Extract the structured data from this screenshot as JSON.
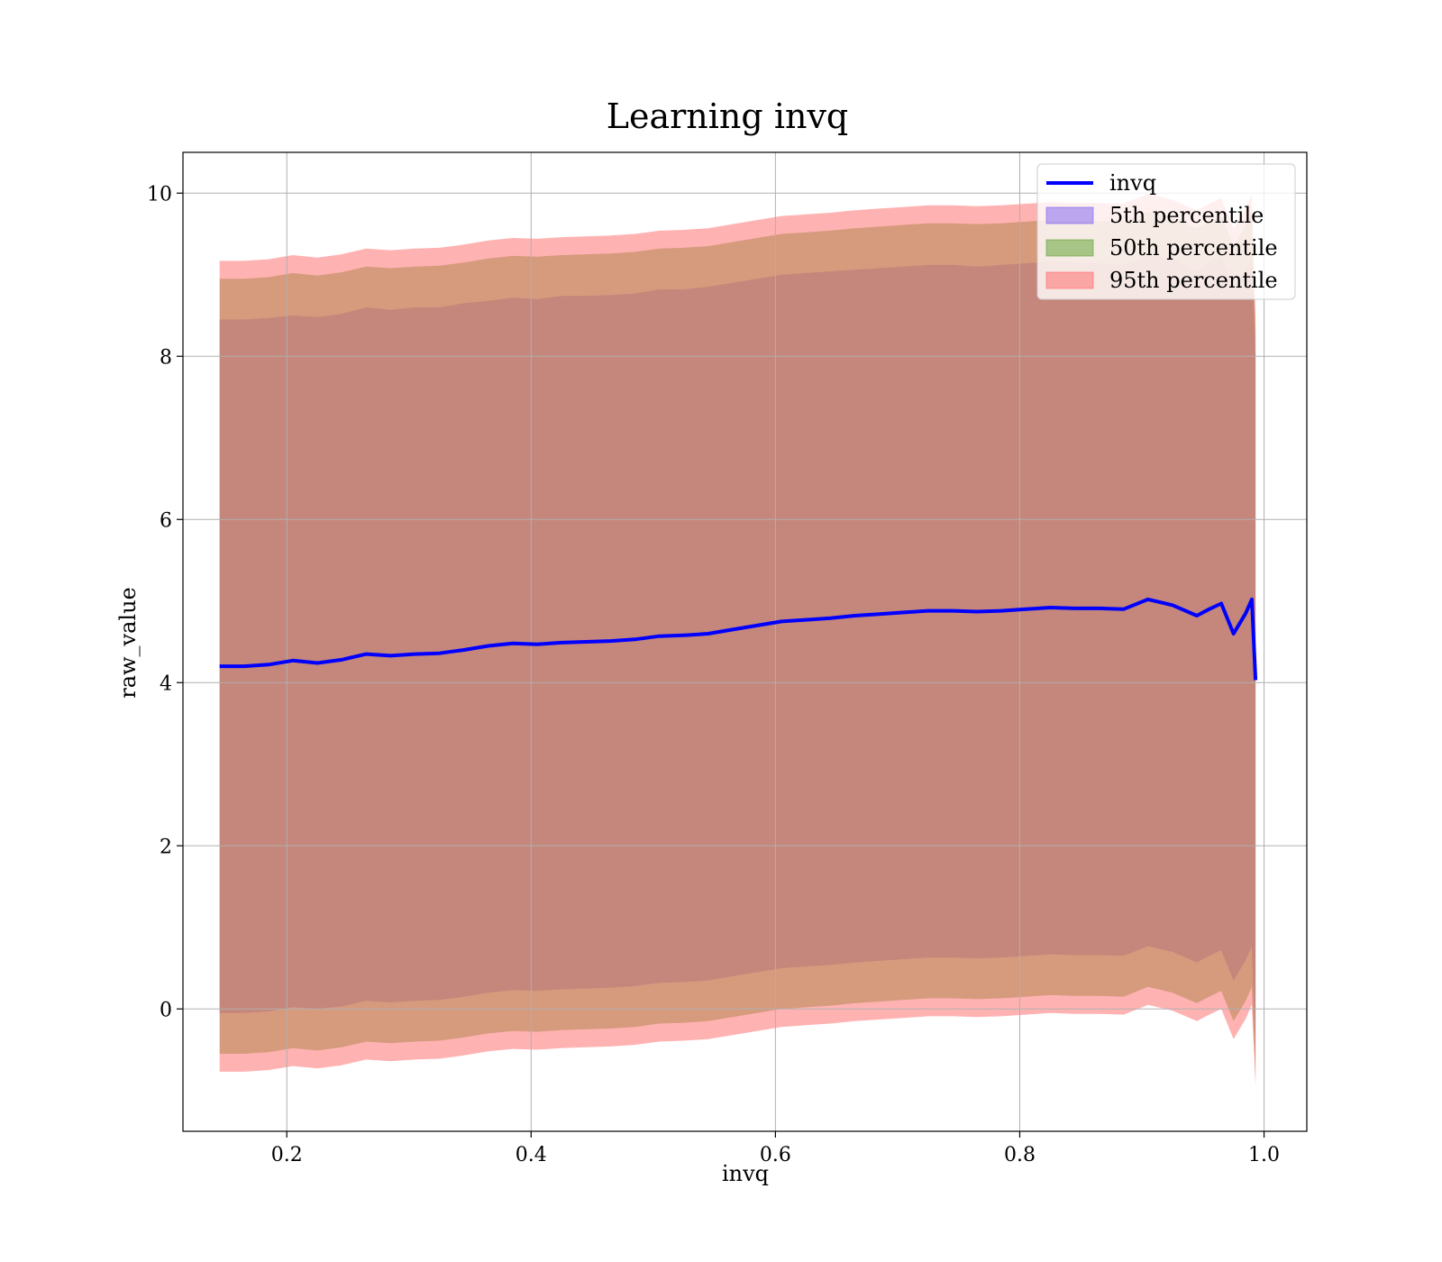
{
  "chart_data": {
    "type": "area",
    "title": "Learning invq",
    "xlabel": "invq",
    "ylabel": "raw_value",
    "xlim": [
      0.115,
      1.035
    ],
    "ylim": [
      -1.5,
      10.5
    ],
    "xticks": [
      0.2,
      0.4,
      0.6,
      0.8,
      1.0
    ],
    "xtick_labels": [
      "0.2",
      "0.4",
      "0.6",
      "0.8",
      "1.0"
    ],
    "yticks": [
      0,
      2,
      4,
      6,
      8,
      10
    ],
    "ytick_labels": [
      "0",
      "2",
      "4",
      "6",
      "8",
      "10"
    ],
    "grid": true,
    "legend_position": "top-right",
    "x": [
      0.145,
      0.165,
      0.185,
      0.205,
      0.225,
      0.245,
      0.265,
      0.285,
      0.305,
      0.325,
      0.345,
      0.365,
      0.385,
      0.405,
      0.425,
      0.445,
      0.465,
      0.485,
      0.505,
      0.525,
      0.545,
      0.565,
      0.585,
      0.605,
      0.625,
      0.645,
      0.665,
      0.685,
      0.705,
      0.725,
      0.745,
      0.765,
      0.785,
      0.805,
      0.825,
      0.845,
      0.865,
      0.885,
      0.905,
      0.925,
      0.945,
      0.955,
      0.965,
      0.975,
      0.985,
      0.99,
      0.993
    ],
    "series": [
      {
        "name": "invq",
        "kind": "line",
        "color": "#0000ff",
        "values": [
          4.2,
          4.2,
          4.22,
          4.27,
          4.24,
          4.28,
          4.35,
          4.33,
          4.35,
          4.36,
          4.4,
          4.45,
          4.48,
          4.47,
          4.49,
          4.5,
          4.51,
          4.53,
          4.57,
          4.58,
          4.6,
          4.65,
          4.7,
          4.75,
          4.77,
          4.79,
          4.82,
          4.84,
          4.86,
          4.88,
          4.88,
          4.87,
          4.88,
          4.9,
          4.92,
          4.91,
          4.91,
          4.9,
          5.02,
          4.95,
          4.82,
          4.9,
          4.97,
          4.6,
          4.85,
          5.02,
          4.03
        ]
      },
      {
        "name": "5th percentile",
        "kind": "band",
        "color": "#7b5cf0",
        "upper": [
          8.45,
          8.45,
          8.47,
          8.5,
          8.48,
          8.52,
          8.6,
          8.57,
          8.6,
          8.6,
          8.65,
          8.68,
          8.72,
          8.7,
          8.74,
          8.74,
          8.75,
          8.77,
          8.82,
          8.82,
          8.85,
          8.9,
          8.95,
          9.0,
          9.02,
          9.04,
          9.06,
          9.08,
          9.1,
          9.12,
          9.12,
          9.1,
          9.12,
          9.14,
          9.16,
          9.15,
          9.14,
          9.13,
          9.24,
          9.2,
          9.05,
          9.15,
          9.22,
          8.85,
          9.05,
          9.2,
          8.0
        ],
        "lower": [
          -0.05,
          -0.05,
          -0.03,
          0.02,
          0.0,
          0.03,
          0.1,
          0.08,
          0.1,
          0.11,
          0.15,
          0.2,
          0.23,
          0.22,
          0.24,
          0.25,
          0.26,
          0.28,
          0.32,
          0.33,
          0.35,
          0.4,
          0.45,
          0.5,
          0.52,
          0.54,
          0.57,
          0.59,
          0.61,
          0.63,
          0.63,
          0.62,
          0.63,
          0.65,
          0.67,
          0.66,
          0.66,
          0.65,
          0.77,
          0.7,
          0.57,
          0.65,
          0.72,
          0.35,
          0.6,
          0.77,
          -0.6
        ]
      },
      {
        "name": "50th percentile",
        "kind": "band",
        "color": "#5aa02c",
        "upper": [
          8.95,
          8.95,
          8.97,
          9.02,
          8.99,
          9.03,
          9.1,
          9.08,
          9.1,
          9.11,
          9.15,
          9.2,
          9.23,
          9.22,
          9.24,
          9.25,
          9.26,
          9.28,
          9.32,
          9.33,
          9.35,
          9.4,
          9.45,
          9.5,
          9.52,
          9.54,
          9.57,
          9.59,
          9.61,
          9.63,
          9.63,
          9.62,
          9.63,
          9.65,
          9.67,
          9.66,
          9.66,
          9.65,
          9.77,
          9.7,
          9.57,
          9.65,
          9.72,
          9.35,
          9.6,
          9.77,
          8.3
        ],
        "lower": [
          -0.55,
          -0.55,
          -0.53,
          -0.48,
          -0.51,
          -0.47,
          -0.4,
          -0.42,
          -0.4,
          -0.39,
          -0.35,
          -0.3,
          -0.27,
          -0.28,
          -0.26,
          -0.25,
          -0.24,
          -0.22,
          -0.18,
          -0.17,
          -0.15,
          -0.1,
          -0.05,
          0.0,
          0.02,
          0.04,
          0.07,
          0.09,
          0.11,
          0.13,
          0.13,
          0.12,
          0.13,
          0.15,
          0.17,
          0.16,
          0.16,
          0.15,
          0.27,
          0.2,
          0.07,
          0.15,
          0.22,
          -0.15,
          0.1,
          0.27,
          -0.85
        ]
      },
      {
        "name": "95th percentile",
        "kind": "band",
        "color": "#ff6666",
        "upper": [
          9.17,
          9.17,
          9.19,
          9.24,
          9.21,
          9.25,
          9.32,
          9.3,
          9.32,
          9.33,
          9.37,
          9.42,
          9.45,
          9.44,
          9.46,
          9.47,
          9.48,
          9.5,
          9.54,
          9.55,
          9.57,
          9.62,
          9.67,
          9.72,
          9.74,
          9.76,
          9.79,
          9.81,
          9.83,
          9.85,
          9.85,
          9.84,
          9.85,
          9.87,
          9.89,
          9.88,
          9.88,
          9.87,
          9.99,
          9.92,
          9.79,
          9.87,
          9.94,
          9.57,
          9.82,
          9.99,
          8.5
        ],
        "lower": [
          -0.77,
          -0.77,
          -0.75,
          -0.7,
          -0.73,
          -0.69,
          -0.62,
          -0.64,
          -0.62,
          -0.61,
          -0.57,
          -0.52,
          -0.49,
          -0.5,
          -0.48,
          -0.47,
          -0.46,
          -0.44,
          -0.4,
          -0.39,
          -0.37,
          -0.32,
          -0.27,
          -0.22,
          -0.2,
          -0.18,
          -0.15,
          -0.13,
          -0.11,
          -0.09,
          -0.09,
          -0.1,
          -0.09,
          -0.07,
          -0.05,
          -0.06,
          -0.06,
          -0.07,
          0.05,
          -0.02,
          -0.15,
          -0.07,
          0.0,
          -0.37,
          -0.12,
          0.05,
          -0.95
        ]
      }
    ]
  }
}
